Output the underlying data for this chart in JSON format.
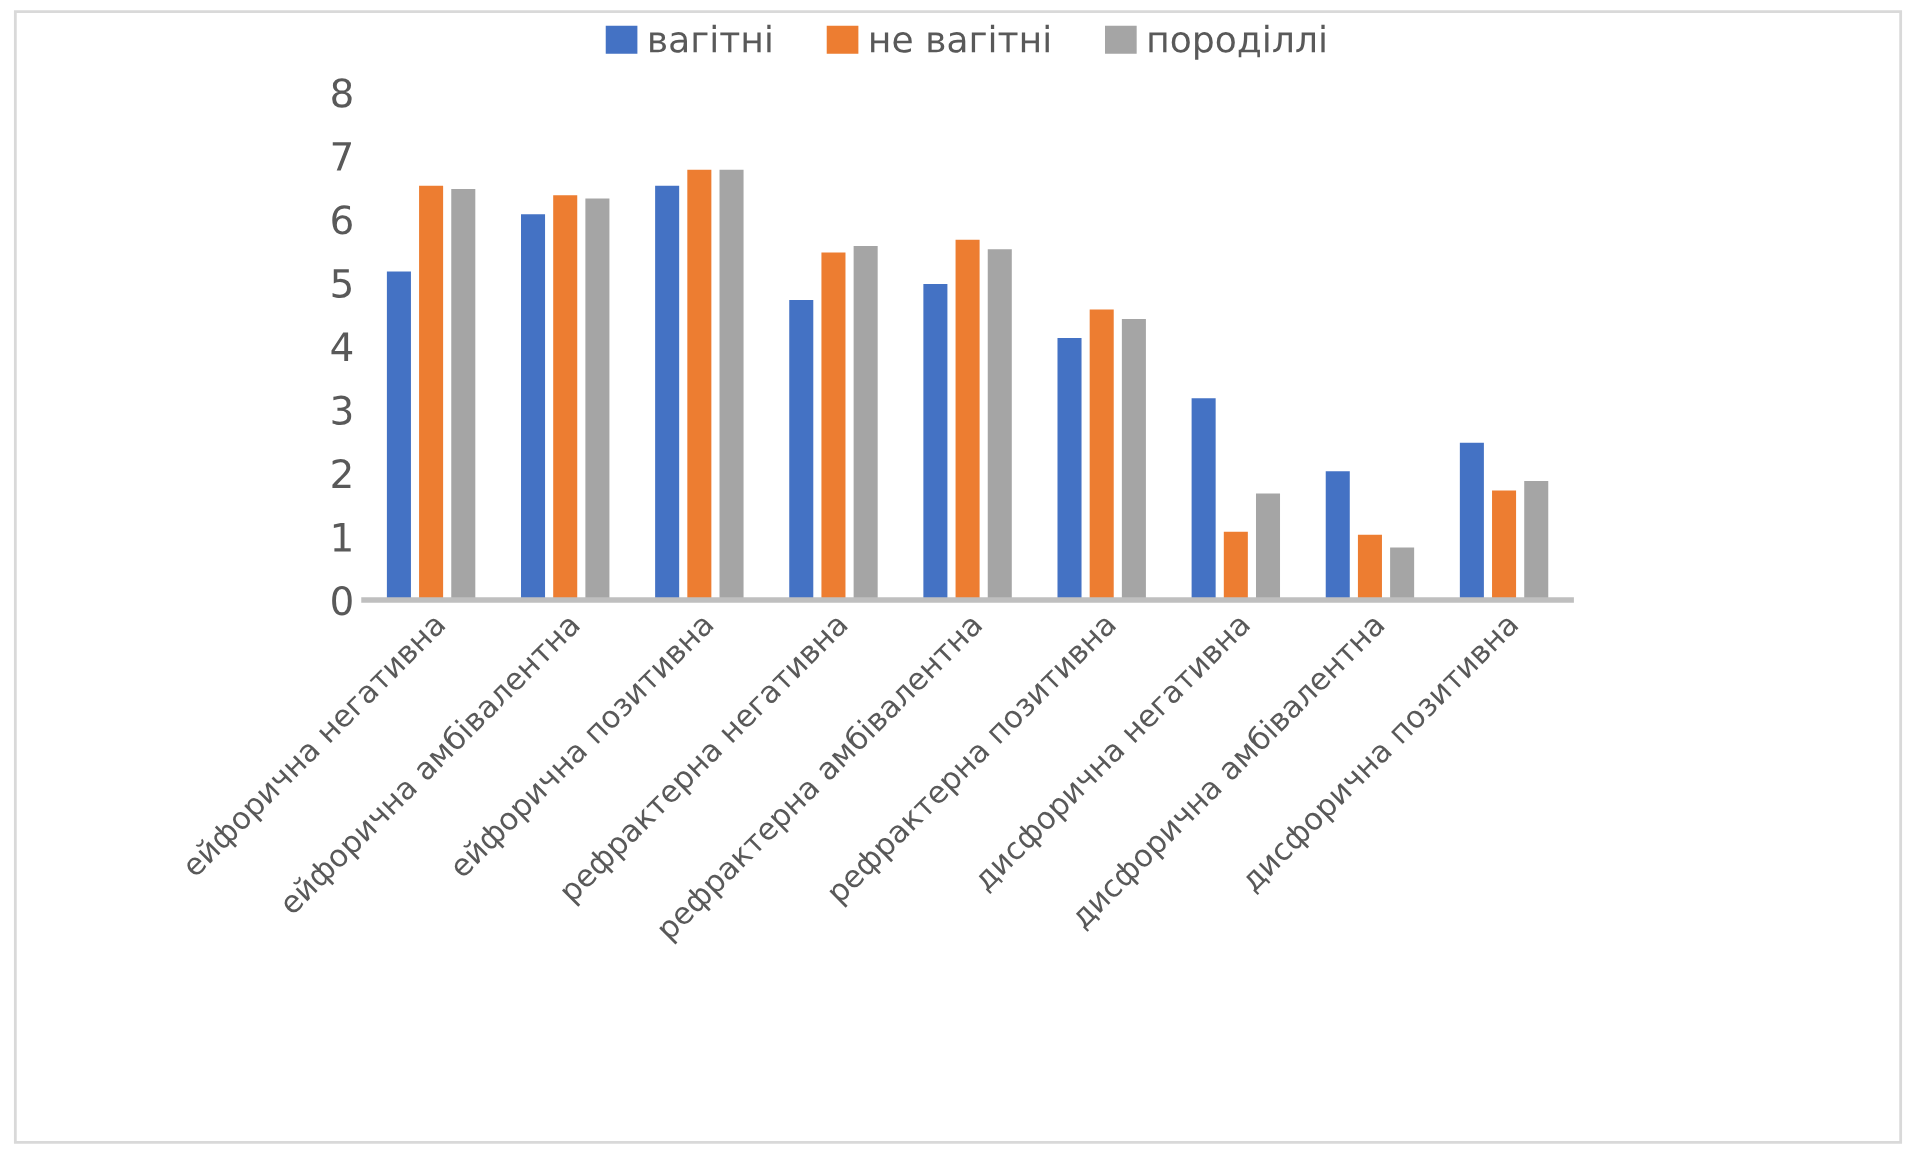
{
  "chart_data": {
    "type": "bar",
    "categories": [
      "ейфорична негативна",
      "ейфорична амбівалентна",
      "ейфорична позитивна",
      "рефрактерна негативна",
      "рефрактерна амбівалентна",
      "рефрактерна позитивна",
      "дисфорична негативна",
      "дисфорична амбівалентна",
      "дисфорична позитивна"
    ],
    "series": [
      {
        "name": "вагітні",
        "color": "#4472c4",
        "values": [
          5.2,
          6.1,
          6.55,
          4.75,
          5.0,
          4.15,
          3.2,
          2.05,
          2.5
        ]
      },
      {
        "name": "не вагітні",
        "color": "#ed7d31",
        "values": [
          6.55,
          6.4,
          6.8,
          5.5,
          5.7,
          4.6,
          1.1,
          1.05,
          1.75
        ]
      },
      {
        "name": "породіллі",
        "color": "#a5a5a5",
        "values": [
          6.5,
          6.35,
          6.8,
          5.6,
          5.55,
          4.45,
          1.7,
          0.85,
          1.9
        ]
      }
    ],
    "ylim": [
      0,
      8
    ],
    "yticks": [
      0,
      1,
      2,
      3,
      4,
      5,
      6,
      7,
      8
    ],
    "grid": false,
    "legend": "top"
  }
}
